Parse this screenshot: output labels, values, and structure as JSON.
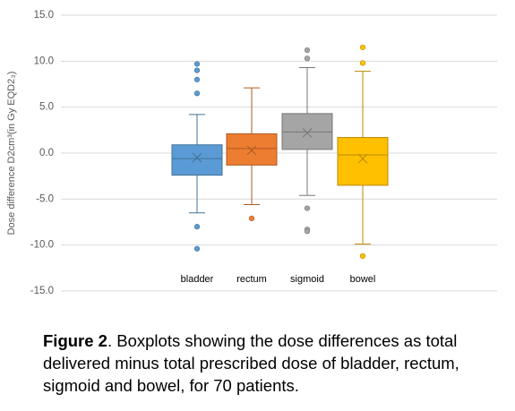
{
  "chart_data": {
    "type": "box",
    "y_label": "Dose difference D2cm³(in Gy EQD2₃)",
    "categories": [
      "bladder",
      "rectum",
      "sigmoid",
      "bowel"
    ],
    "boxes": [
      {
        "color": "#5b9bd5",
        "min": -6.5,
        "q1": -2.4,
        "median": -0.6,
        "q3": 0.9,
        "max": 4.2,
        "mean": -0.5,
        "outliers": [
          9.7,
          9.0,
          8.0,
          6.5,
          -8.0,
          -10.4
        ]
      },
      {
        "color": "#ed7d31",
        "min": -5.6,
        "q1": -1.3,
        "median": 0.5,
        "q3": 2.1,
        "max": 7.1,
        "mean": 0.3,
        "outliers": [
          -7.1
        ]
      },
      {
        "color": "#a5a5a5",
        "min": -4.6,
        "q1": 0.4,
        "median": 2.3,
        "q3": 4.3,
        "max": 9.3,
        "mean": 2.2,
        "outliers": [
          11.2,
          10.3,
          -6.0,
          -8.3,
          -8.5
        ]
      },
      {
        "color": "#ffc000",
        "min": -9.9,
        "q1": -3.5,
        "median": -0.2,
        "q3": 1.7,
        "max": 8.9,
        "mean": -0.6,
        "outliers": [
          11.5,
          9.8,
          -11.2
        ]
      }
    ],
    "ylim": [
      -15,
      15
    ],
    "yticks": [
      {
        "value": -15,
        "label": "-15.0"
      },
      {
        "value": -10,
        "label": "-10.0"
      },
      {
        "value": -5,
        "label": "-5.0"
      },
      {
        "value": 0,
        "label": "0.0"
      },
      {
        "value": 5,
        "label": "5.0"
      },
      {
        "value": 10,
        "label": "10.0"
      },
      {
        "value": 15,
        "label": "15.0"
      }
    ],
    "grid": true
  },
  "caption": {
    "label": "Figure 2",
    "text": ". Boxplots showing the dose differences as total delivered minus total prescribed dose of bladder, rectum, sigmoid and bowel, for 70 patients."
  }
}
